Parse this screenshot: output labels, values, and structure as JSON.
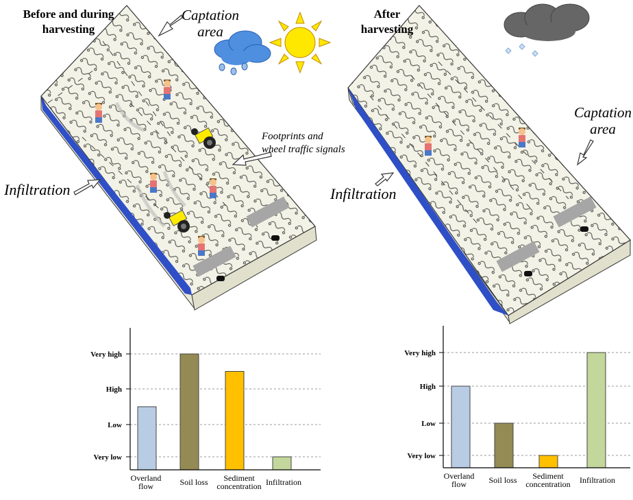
{
  "panels": [
    {
      "title": "Before and during\nharvesting",
      "captation_label": "Captation\narea",
      "infiltration_label": "Infiltration",
      "footprints_label": "Footprints and\nwheel traffic signals"
    },
    {
      "title": "After\nharvesting",
      "captation_label": "Captation\narea",
      "infiltration_label": "Infiltration"
    }
  ],
  "icons": [
    "rain-cloud-icon",
    "sun-icon",
    "hail-cloud-icon",
    "farmer-icon",
    "tractor-icon",
    "collector-icon"
  ],
  "colors": {
    "bar_overland": "#b8cce4",
    "bar_soil": "#948a54",
    "bar_sediment": "#ffc000",
    "bar_infiltration": "#c3d69b",
    "slab_top": "#f2f2e6",
    "water": "#2f4fc6"
  },
  "chart_data": [
    {
      "type": "bar",
      "title": "",
      "y_levels": [
        "Very low",
        "Low",
        "High",
        "Very high"
      ],
      "categories": [
        "Overland\nflow",
        "Soil loss",
        "Sediment\nconcentration",
        "Infiltration"
      ],
      "values": [
        1.5,
        3.0,
        2.5,
        0.0
      ],
      "ylim": [
        -0.5,
        3.0
      ],
      "colors": [
        "#b8cce4",
        "#948a54",
        "#ffc000",
        "#c3d69b"
      ],
      "grid": true
    },
    {
      "type": "bar",
      "title": "",
      "y_levels": [
        "Very low",
        "Low",
        "High",
        "Very high"
      ],
      "categories": [
        "Overland\nflow",
        "Soil loss",
        "Sediment\nconcentration",
        "Infiltration"
      ],
      "values": [
        2.0,
        1.0,
        0.0,
        3.0
      ],
      "ylim": [
        -0.5,
        3.0
      ],
      "colors": [
        "#b8cce4",
        "#948a54",
        "#ffc000",
        "#c3d69b"
      ],
      "grid": true
    }
  ]
}
